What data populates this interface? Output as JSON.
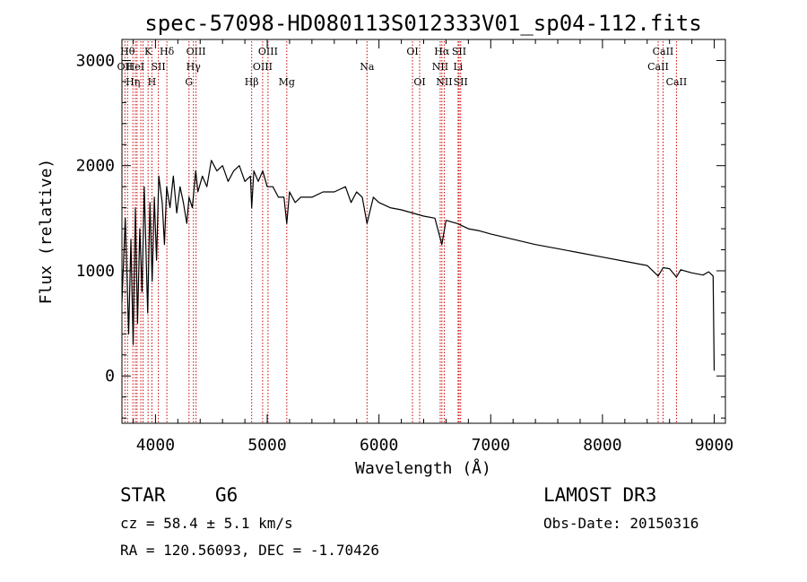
{
  "chart_data": {
    "type": "line",
    "title": "spec-57098-HD080113S012333V01_sp04-112.fits",
    "xlabel": "Wavelength (Å)",
    "ylabel": "Flux (relative)",
    "xlim": [
      3700,
      9100
    ],
    "ylim": [
      -450,
      3200
    ],
    "x_ticks": [
      4000,
      5000,
      6000,
      7000,
      8000,
      9000
    ],
    "x_tick_labels": [
      "4000",
      "5000",
      "6000",
      "7000",
      "8000",
      "9000"
    ],
    "y_ticks": [
      0,
      1000,
      2000,
      3000
    ],
    "y_tick_labels": [
      "0",
      "1000",
      "2000",
      "3000"
    ],
    "x_minor_step": 200,
    "y_minor_step": 200,
    "series": [
      {
        "name": "spectrum",
        "color": "#000000",
        "x": [
          3700,
          3730,
          3760,
          3780,
          3800,
          3820,
          3840,
          3860,
          3880,
          3900,
          3930,
          3950,
          3970,
          3990,
          4010,
          4030,
          4060,
          4080,
          4100,
          4130,
          4160,
          4190,
          4220,
          4250,
          4280,
          4300,
          4330,
          4360,
          4380,
          4420,
          4460,
          4500,
          4550,
          4600,
          4650,
          4700,
          4750,
          4800,
          4850,
          4861,
          4880,
          4920,
          4960,
          5000,
          5050,
          5100,
          5150,
          5175,
          5200,
          5250,
          5300,
          5400,
          5500,
          5600,
          5700,
          5750,
          5800,
          5850,
          5893,
          5950,
          6000,
          6100,
          6200,
          6300,
          6400,
          6500,
          6563,
          6600,
          6700,
          6800,
          6900,
          7000,
          7200,
          7400,
          7600,
          7800,
          8000,
          8200,
          8400,
          8498,
          8542,
          8600,
          8662,
          8700,
          8800,
          8900,
          8950,
          8990,
          9000
        ],
        "values": [
          700,
          1500,
          400,
          1300,
          300,
          1600,
          500,
          1400,
          800,
          1800,
          600,
          1650,
          900,
          1700,
          1100,
          1900,
          1650,
          1250,
          1800,
          1600,
          1900,
          1550,
          1800,
          1650,
          1450,
          1700,
          1600,
          1950,
          1750,
          1900,
          1800,
          2050,
          1950,
          2000,
          1850,
          1950,
          2000,
          1850,
          1900,
          1600,
          1950,
          1850,
          1950,
          1800,
          1800,
          1700,
          1700,
          1450,
          1750,
          1650,
          1700,
          1700,
          1750,
          1750,
          1800,
          1650,
          1750,
          1700,
          1450,
          1700,
          1650,
          1600,
          1580,
          1550,
          1520,
          1500,
          1250,
          1480,
          1450,
          1400,
          1380,
          1350,
          1300,
          1250,
          1210,
          1170,
          1130,
          1090,
          1050,
          950,
          1030,
          1020,
          940,
          1010,
          980,
          960,
          990,
          950,
          50
        ]
      }
    ],
    "spectral_lines": [
      {
        "wavelength": 3727,
        "row": 2,
        "label": "OII"
      },
      {
        "wavelength": 3750,
        "row": 1,
        "label": "Hθ"
      },
      {
        "wavelength": 3798,
        "row": 3,
        "label": "Hη"
      },
      {
        "wavelength": 3820,
        "row": 2,
        "label": "HeI"
      },
      {
        "wavelength": 3835,
        "row": 1,
        "label": ""
      },
      {
        "wavelength": 3869,
        "row": 2,
        "label": ""
      },
      {
        "wavelength": 3889,
        "row": 3,
        "label": ""
      },
      {
        "wavelength": 3934,
        "row": 1,
        "label": "K"
      },
      {
        "wavelength": 3968,
        "row": 3,
        "label": "H"
      },
      {
        "wavelength": 4026,
        "row": 2,
        "label": "SII"
      },
      {
        "wavelength": 4102,
        "row": 1,
        "label": "Hδ"
      },
      {
        "wavelength": 4300,
        "row": 3,
        "label": "G"
      },
      {
        "wavelength": 4340,
        "row": 2,
        "label": "Hγ"
      },
      {
        "wavelength": 4363,
        "row": 1,
        "label": "OIII"
      },
      {
        "wavelength": 4861,
        "row": 3,
        "label": "Hβ"
      },
      {
        "wavelength": 4959,
        "row": 2,
        "label": "OIII"
      },
      {
        "wavelength": 5007,
        "row": 1,
        "label": "OIII"
      },
      {
        "wavelength": 5175,
        "row": 3,
        "label": "Mg"
      },
      {
        "wavelength": 5893,
        "row": 2,
        "label": "Na"
      },
      {
        "wavelength": 6300,
        "row": 1,
        "label": "OI"
      },
      {
        "wavelength": 6364,
        "row": 3,
        "label": "OI"
      },
      {
        "wavelength": 6548,
        "row": 2,
        "label": "NII"
      },
      {
        "wavelength": 6563,
        "row": 1,
        "label": "Hα"
      },
      {
        "wavelength": 6584,
        "row": 3,
        "label": "NII"
      },
      {
        "wavelength": 6708,
        "row": 2,
        "label": "Li"
      },
      {
        "wavelength": 6717,
        "row": 1,
        "label": "SII"
      },
      {
        "wavelength": 6731,
        "row": 3,
        "label": "SII"
      },
      {
        "wavelength": 8498,
        "row": 2,
        "label": "CaII"
      },
      {
        "wavelength": 8542,
        "row": 1,
        "label": "CaII"
      },
      {
        "wavelength": 8662,
        "row": 3,
        "label": "CaII"
      }
    ],
    "spectral_line_color": "#cc0000"
  },
  "info": {
    "object_class": "STAR",
    "subclass": "G6",
    "survey": "LAMOST DR3",
    "cz": "cz = 58.4 ± 5.1 km/s",
    "obs_date": "Obs-Date: 20150316",
    "coords": "RA = 120.56093, DEC =  -1.70426"
  }
}
